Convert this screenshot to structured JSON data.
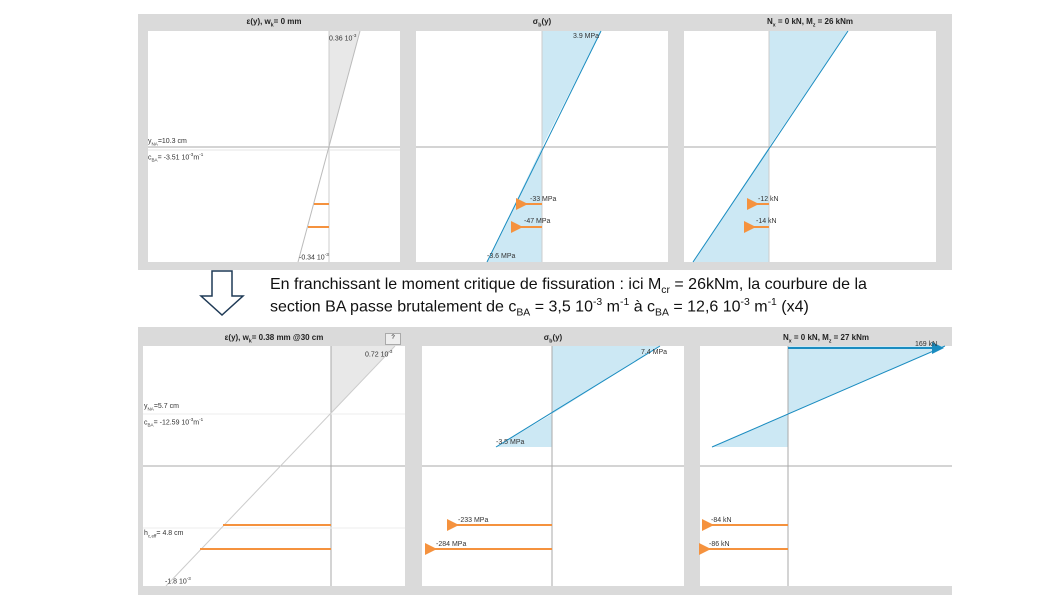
{
  "top": {
    "strain": {
      "title_pre": "ε(y), w",
      "title_sub": "k",
      "title_post": "= 0 mm",
      "top_val": "0.36 10",
      "top_exp": "-3",
      "bottom_val": "-0.34 10",
      "bottom_exp": "-3",
      "yna": "=10.3 cm",
      "cba": "= -3.51  10",
      "cba_exp": "-3",
      "cba_unit": "m",
      "cba_unit_exp": "-1"
    },
    "stress": {
      "title_pre": "σ",
      "title_sub": "b",
      "title_post": "(y)",
      "top_val": "3.9 MPa",
      "bottom_val": "-3.6 MPa",
      "bar1": "-33 MPa",
      "bar2": "-47 MPa"
    },
    "forces": {
      "title_pre": "N",
      "title_sub": "x",
      "title_mid": " = 0 kN, M",
      "title_sub2": "z",
      "title_post": " = 26 kNm",
      "bar1": "-12 kN",
      "bar2": "-14 kN"
    }
  },
  "caption": {
    "line1_a": "En franchissant le moment critique de fissuration : ici M",
    "line1_sub": "cr",
    "line1_b": " = 26kNm, la courbure de la",
    "line2_a": "section BA passe brutalement de c",
    "line2_sub1": "BA",
    "line2_b": " = 3,5 10",
    "line2_sup1": "-3",
    "line2_c": " m",
    "line2_sup2": "-1",
    "line2_d": " à c",
    "line2_sub2": "BA",
    "line2_e": " = 12,6 10",
    "line2_sup3": "-3",
    "line2_f": " m",
    "line2_sup4": "-1",
    "line2_g": " (x4)"
  },
  "bottom": {
    "strain": {
      "title_pre": "ε(y), w",
      "title_sub": "k",
      "title_post": "= 0.38 mm @30 cm",
      "help": "?",
      "top_val": "0.72 10",
      "top_exp": "-3",
      "bottom_val": "-1.8 10",
      "bottom_exp": "-3",
      "yna": "=5.7 cm",
      "cba": "= -12.59 10",
      "cba_exp": "-3",
      "cba_unit": "m",
      "cba_unit_exp": "-1",
      "hceff": "= 4.8 cm"
    },
    "stress": {
      "title_pre": "σ",
      "title_sub": "b",
      "title_post": "(y)",
      "top_val": "7.4 MPa",
      "bottom_val": "-3.5 MPa",
      "bar1": "-233 MPa",
      "bar2": "-284 MPa"
    },
    "forces": {
      "title_pre": "N",
      "title_sub": "x",
      "title_mid": " = 0 kN, M",
      "title_sub2": "z",
      "title_post": " = 27 kNm",
      "top_force": "169 kN",
      "bar1": "-84 kN",
      "bar2": "-86 kN"
    }
  },
  "colors": {
    "steel": "#f5923e",
    "concrete_fill": "#cce8f4",
    "concrete_line": "#1a8cc0",
    "strain_fill": "#e8e8e8",
    "panel_bg": "#dadada"
  }
}
